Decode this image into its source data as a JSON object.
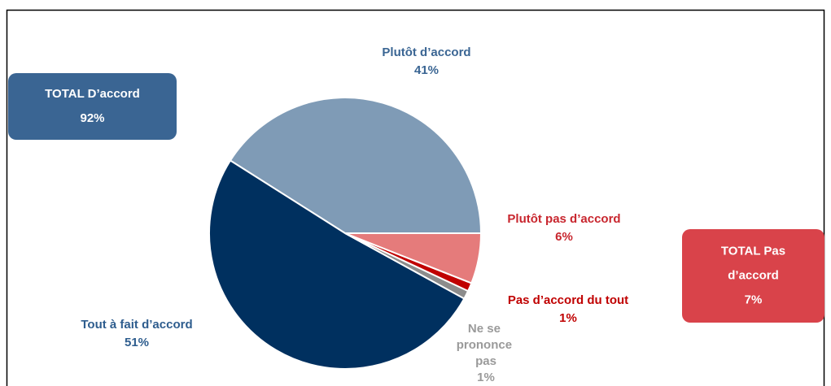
{
  "chart_data": {
    "type": "pie",
    "categories": [
      "Plutôt d’accord",
      "Tout à fait d’accord",
      "Ne se prononce pas",
      "Pas d’accord du tout",
      "Plutôt pas d’accord"
    ],
    "values": [
      41,
      51,
      1,
      1,
      6
    ],
    "value_labels": [
      "41%",
      "51%",
      "1%",
      "1%",
      "6%"
    ],
    "colors": [
      "#7f9bb6",
      "#00305f",
      "#8c8c8c",
      "#c00000",
      "#e57b7b"
    ],
    "annotations": [
      {
        "lines": [
          "TOTAL D’accord"
        ],
        "value_label": "92%",
        "value": 92,
        "color": "#3a6593"
      },
      {
        "lines": [
          "TOTAL Pas",
          "d’accord"
        ],
        "value_label": "7%",
        "value": 7,
        "color": "#d9434a"
      }
    ]
  }
}
